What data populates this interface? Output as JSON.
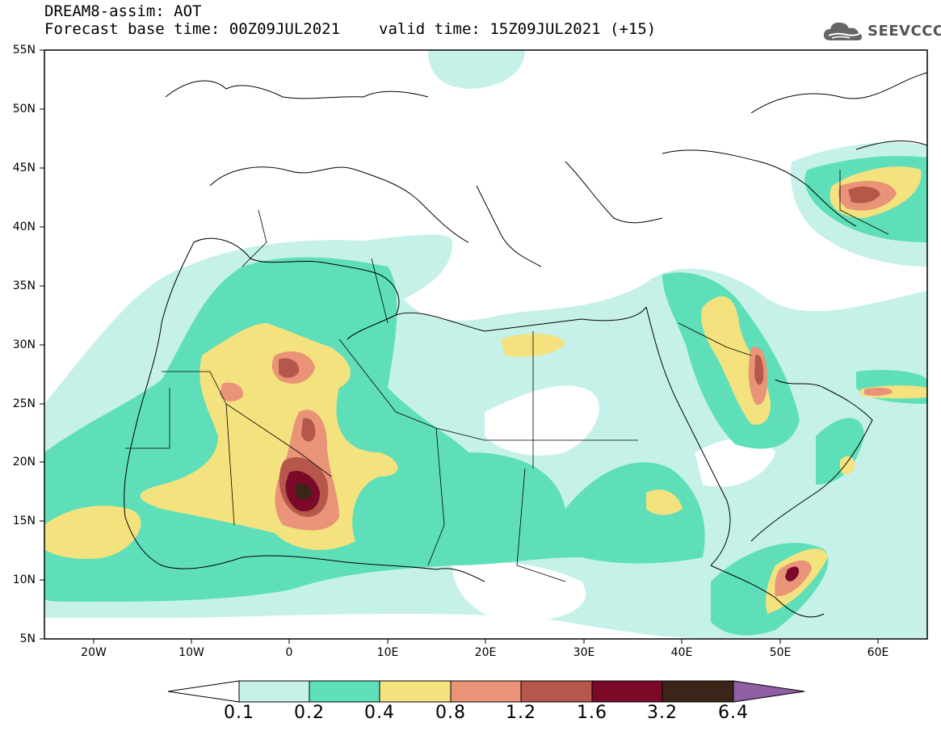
{
  "title": {
    "line1": "DREAM8-assim: AOT",
    "base_time": "Forecast base time: 00Z09JUL2021",
    "valid_time": "valid time: 15Z09JUL2021 (+15)"
  },
  "logo": {
    "text": "SEEVCCC",
    "icon": "cloud-icon"
  },
  "map": {
    "lon_range": [
      -25,
      65
    ],
    "lat_range": [
      5,
      55
    ],
    "lat_labels": [
      "55N",
      "50N",
      "45N",
      "40N",
      "35N",
      "30N",
      "25N",
      "20N",
      "15N",
      "10N",
      "5N"
    ],
    "lon_labels": [
      "20W",
      "10W",
      "0",
      "10E",
      "20E",
      "30E",
      "40E",
      "50E",
      "60E"
    ]
  },
  "colorbar": {
    "labels": [
      "0.1",
      "0.2",
      "0.4",
      "0.8",
      "1.2",
      "1.6",
      "3.2",
      "6.4"
    ],
    "colors": [
      "#ffffff",
      "#c5f1e9",
      "#5fdfb9",
      "#f4e27e",
      "#e99478",
      "#b5574a",
      "#7b0a28",
      "#3a2618",
      "#8e5fa5"
    ]
  },
  "colors": {
    "c01": "#c5f1e9",
    "c02": "#5fdfb9",
    "c04": "#f4e27e",
    "c08": "#e99478",
    "c12": "#b5574a",
    "c16": "#7b0a28",
    "c32": "#3a2618"
  }
}
